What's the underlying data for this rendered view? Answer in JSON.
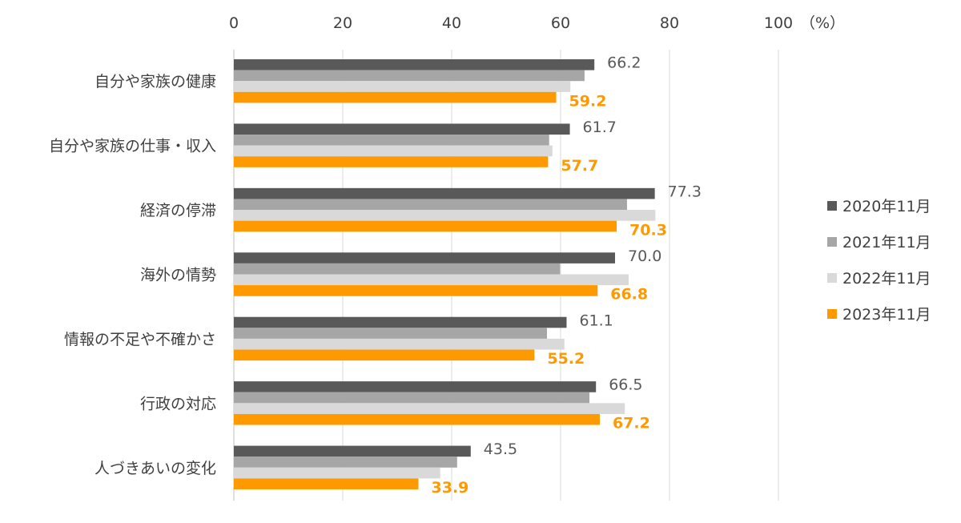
{
  "chart_data": {
    "type": "bar",
    "orientation": "horizontal",
    "title": "",
    "xlabel": "",
    "unit_label": "（%）",
    "xlim": [
      0,
      100
    ],
    "xticks": [
      0,
      20,
      40,
      60,
      80,
      100
    ],
    "grid": true,
    "legend_position": "right",
    "categories": [
      "自分や家族の健康",
      "自分や家族の仕事・収入",
      "経済の停滞",
      "海外の情勢",
      "情報の不足や不確かさ",
      "行政の対応",
      "人づきあいの変化"
    ],
    "series": [
      {
        "name": "2020年11月",
        "color": "#595959",
        "values": [
          66.2,
          61.7,
          77.3,
          70.0,
          61.1,
          66.5,
          43.5
        ],
        "labeled": true
      },
      {
        "name": "2021年11月",
        "color": "#a6a6a6",
        "values": [
          64.4,
          57.9,
          72.2,
          59.9,
          57.5,
          65.3,
          41.0
        ],
        "labeled": false
      },
      {
        "name": "2022年11月",
        "color": "#d9d9d9",
        "values": [
          61.8,
          58.5,
          77.4,
          72.5,
          60.7,
          71.8,
          37.9
        ],
        "labeled": false
      },
      {
        "name": "2023年11月",
        "color": "#ff9900",
        "values": [
          59.2,
          57.7,
          70.3,
          66.8,
          55.2,
          67.2,
          33.9
        ],
        "labeled": true
      }
    ]
  }
}
